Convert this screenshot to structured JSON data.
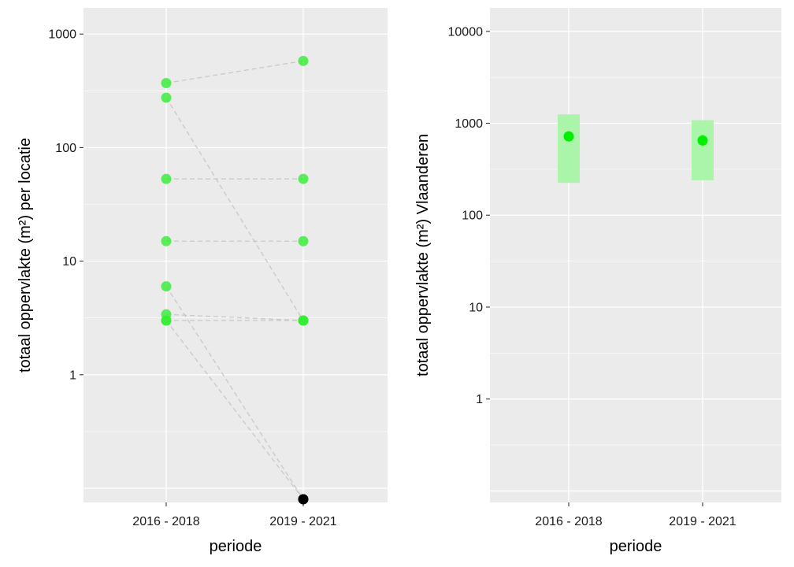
{
  "chart_data": [
    {
      "type": "scatter",
      "xlabel": "periode",
      "ylabel": "totaal oppervlakte (m²) per locatie",
      "categories": [
        "2016 - 2018",
        "2019 - 2021"
      ],
      "y_scale": "log10",
      "ylim": [
        0.075,
        1700
      ],
      "y_ticks": [
        {
          "value": 1,
          "label": "1"
        },
        {
          "value": 10,
          "label": "10"
        },
        {
          "value": 100,
          "label": "100"
        },
        {
          "value": 1000,
          "label": "1000"
        }
      ],
      "grid": true,
      "point_color": "#33ee33",
      "zero_point_color": "#000000",
      "link_color": "#c8c8c8",
      "pairs": [
        {
          "from": 370,
          "to": 580
        },
        {
          "from": 275,
          "to": 3
        },
        {
          "from": 53,
          "to": 53
        },
        {
          "from": 15,
          "to": 15
        },
        {
          "from": 6,
          "to": 0.08
        },
        {
          "from": 3.4,
          "to": 3
        },
        {
          "from": 3,
          "to": 3
        },
        {
          "from": 3,
          "to": 0.08
        }
      ]
    },
    {
      "type": "scatter",
      "xlabel": "periode",
      "ylabel": "totaal oppervlakte (m²) Vlaanderen",
      "categories": [
        "2016 - 2018",
        "2019 - 2021"
      ],
      "y_scale": "log10",
      "ylim": [
        0.075,
        18000
      ],
      "y_ticks": [
        {
          "value": 1,
          "label": "1"
        },
        {
          "value": 10,
          "label": "10"
        },
        {
          "value": 100,
          "label": "100"
        },
        {
          "value": 1000,
          "label": "1000"
        },
        {
          "value": 10000,
          "label": "10000"
        }
      ],
      "grid": true,
      "point_color": "#00ee00",
      "interval_color": "#aaf5aa",
      "points": [
        {
          "category": "2016 - 2018",
          "value": 720,
          "lower": 225,
          "upper": 1250
        },
        {
          "category": "2019 - 2021",
          "value": 650,
          "lower": 240,
          "upper": 1080
        }
      ]
    }
  ]
}
